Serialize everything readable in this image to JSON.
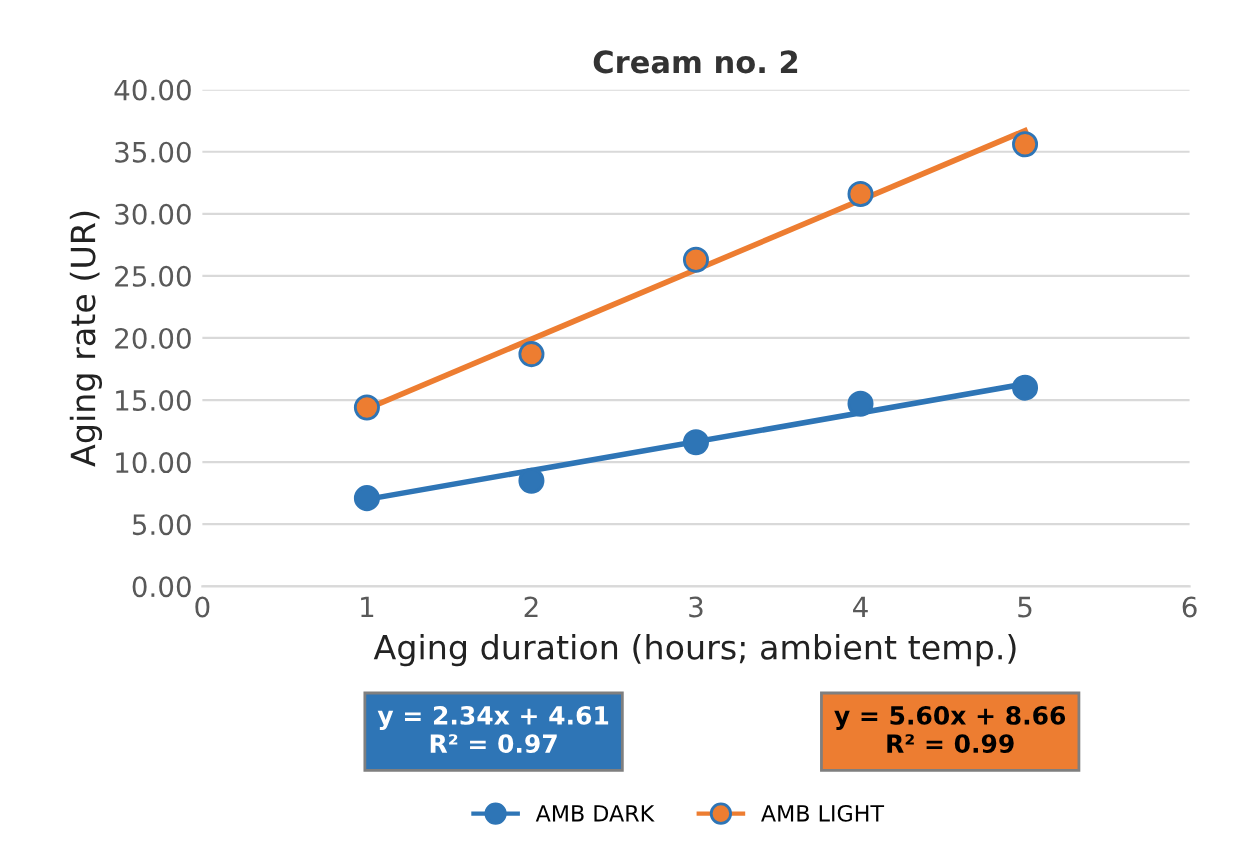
{
  "chart_data": {
    "type": "scatter",
    "title": "Cream no. 2",
    "xlabel": "Aging duration (hours; ambient temp.)",
    "ylabel": "Aging rate (UR)",
    "xlim": [
      0,
      6
    ],
    "xticks": [
      0,
      1,
      2,
      3,
      4,
      5,
      6
    ],
    "ylim": [
      0,
      40
    ],
    "yticks": [
      {
        "value": 0,
        "label": "0.00"
      },
      {
        "value": 5,
        "label": "5.00"
      },
      {
        "value": 10,
        "label": "10.00"
      },
      {
        "value": 15,
        "label": "15.00"
      },
      {
        "value": 20,
        "label": "20.00"
      },
      {
        "value": 25,
        "label": "25.00"
      },
      {
        "value": 30,
        "label": "30.00"
      },
      {
        "value": 35,
        "label": "35.00"
      },
      {
        "value": 40,
        "label": "40.00"
      }
    ],
    "grid": "y",
    "legend": "bottom",
    "marker": "circle",
    "series": [
      {
        "name": "AMB DARK",
        "color": "#2e75b6",
        "x": [
          1,
          2,
          3,
          4,
          5
        ],
        "values": [
          7.1,
          8.5,
          11.6,
          14.7,
          16.0
        ]
      },
      {
        "name": "AMB LIGHT",
        "color": "#ed7d31",
        "x": [
          1,
          2,
          3,
          4,
          5
        ],
        "values": [
          14.4,
          18.7,
          26.3,
          31.6,
          35.6
        ]
      },
      {
        "type": "line",
        "marker": "none",
        "color": "#2e75b6",
        "x": [
          1,
          5
        ],
        "values": [
          7.0,
          16.3
        ]
      },
      {
        "type": "line",
        "marker": "none",
        "color": "#ed7d31",
        "x": [
          1,
          5
        ],
        "values": [
          14.3,
          36.7
        ]
      }
    ],
    "annotations": [
      "y = 2.34x + 4.61\nR² = 0.97",
      "y = 5.60x + 8.66\nR² = 0.99"
    ]
  }
}
